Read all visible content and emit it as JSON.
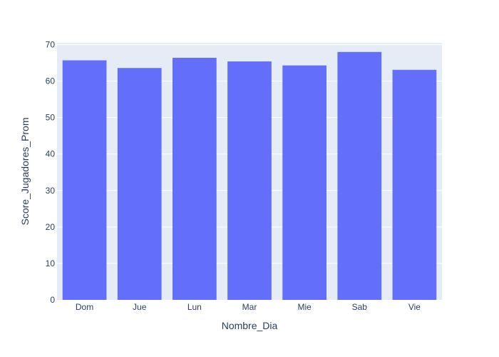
{
  "chart_data": {
    "type": "bar",
    "title": "",
    "xlabel": "Nombre_Dia",
    "ylabel": "Score_Jugadores_Prom",
    "categories": [
      "Dom",
      "Jue",
      "Lun",
      "Mar",
      "Mie",
      "Sab",
      "Vie"
    ],
    "values": [
      65.7,
      63.6,
      66.4,
      65.4,
      64.3,
      68.0,
      63.1
    ],
    "ylim": [
      0,
      70.5
    ],
    "yticks": [
      0,
      10,
      20,
      30,
      40,
      50,
      60,
      70
    ],
    "grid": true,
    "legend": "none",
    "colors": {
      "bar": "#636efa",
      "plot_bg": "#e5ecf6",
      "grid": "#ffffff",
      "text": "#2a3f5f"
    }
  }
}
